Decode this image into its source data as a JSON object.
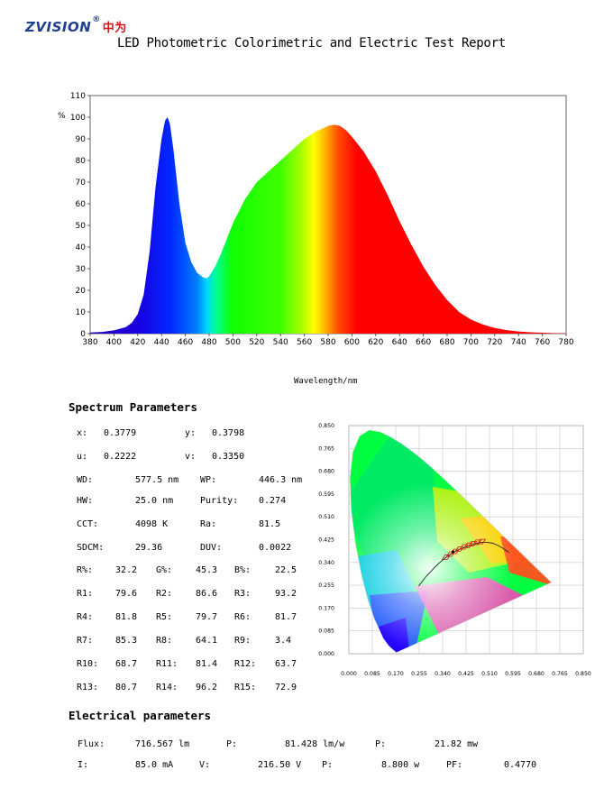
{
  "header": {
    "logo_text": "ZVISION",
    "logo_reg": "®",
    "logo_cn": "中为",
    "title": "LED Photometric Colorimetric and Electric Test Report"
  },
  "chart_data": [
    {
      "type": "area",
      "title": "",
      "xlabel": "Wavelength/nm",
      "ylabel": "%",
      "xlim": [
        380,
        780
      ],
      "ylim": [
        0,
        110
      ],
      "xticks": [
        "380",
        "400",
        "420",
        "440",
        "460",
        "480",
        "500",
        "520",
        "540",
        "560",
        "580",
        "600",
        "620",
        "640",
        "660",
        "680",
        "700",
        "720",
        "740",
        "760",
        "780"
      ],
      "yticks": [
        "0",
        "10",
        "20",
        "30",
        "40",
        "50",
        "60",
        "70",
        "80",
        "90",
        "100",
        "110"
      ],
      "grid": false,
      "fill": "spectral-colors",
      "x": [
        380,
        390,
        400,
        410,
        415,
        420,
        425,
        430,
        435,
        440,
        443,
        445,
        447,
        450,
        455,
        460,
        465,
        470,
        475,
        478,
        480,
        485,
        490,
        495,
        500,
        510,
        520,
        530,
        540,
        550,
        560,
        570,
        580,
        585,
        590,
        595,
        600,
        610,
        620,
        630,
        640,
        650,
        660,
        670,
        680,
        690,
        700,
        710,
        720,
        730,
        740,
        750,
        760,
        770,
        780
      ],
      "y": [
        0.5,
        0.8,
        1.5,
        3.0,
        5.0,
        9.0,
        18.0,
        38.0,
        68.0,
        90.0,
        98.5,
        100.0,
        97.0,
        85.0,
        60.0,
        42.0,
        33.0,
        28.0,
        26.0,
        25.5,
        26.5,
        31.0,
        37.0,
        44.0,
        51.0,
        62.0,
        70.0,
        75.0,
        80.0,
        85.0,
        90.0,
        93.5,
        96.0,
        96.5,
        96.0,
        94.0,
        91.0,
        84.0,
        75.0,
        64.0,
        52.0,
        41.0,
        31.0,
        22.5,
        15.5,
        10.0,
        6.5,
        4.2,
        2.6,
        1.6,
        1.0,
        0.6,
        0.4,
        0.2,
        0.1
      ]
    },
    {
      "type": "scatter",
      "title": "",
      "xlim": [
        0.0,
        0.85
      ],
      "ylim": [
        0.0,
        0.85
      ],
      "xticks": [
        "0.000",
        "0.085",
        "0.170",
        "0.255",
        "0.340",
        "0.425",
        "0.510",
        "0.595",
        "0.680",
        "0.765",
        "0.850"
      ],
      "yticks": [
        "0.000",
        "0.085",
        "0.170",
        "0.255",
        "0.340",
        "0.425",
        "0.510",
        "0.595",
        "0.680",
        "0.765",
        "0.850"
      ],
      "grid": true,
      "x": [
        0.3779
      ],
      "y": [
        0.3798
      ]
    }
  ],
  "spectrum": {
    "heading": "Spectrum Parameters",
    "rows": [
      [
        "x:",
        "0.3779",
        "y:",
        "0.3798"
      ],
      [
        "u:",
        "0.2222",
        "v:",
        "0.3350"
      ],
      [
        "WD:",
        "577.5 nm",
        "WP:",
        "446.3 nm"
      ],
      [
        "HW:",
        "25.0 nm",
        "Purity:",
        "0.274"
      ],
      [
        "CCT:",
        "4098 K",
        "Ra:",
        "81.5"
      ],
      [
        "SDCM:",
        "29.36",
        "DUV:",
        "0.0022"
      ],
      [
        "R%:",
        "32.2",
        "G%:",
        "45.3",
        "B%:",
        "22.5"
      ],
      [
        "R1:",
        "79.6",
        "R2:",
        "86.6",
        "R3:",
        "93.2"
      ],
      [
        "R4:",
        "81.8",
        "R5:",
        "79.7",
        "R6:",
        "81.7"
      ],
      [
        "R7:",
        "85.3",
        "R8:",
        "64.1",
        "R9:",
        "3.4"
      ],
      [
        "R10:",
        "68.7",
        "R11:",
        "81.4",
        "R12:",
        "63.7"
      ],
      [
        "R13:",
        "80.7",
        "R14:",
        "96.2",
        "R15:",
        "72.9"
      ]
    ]
  },
  "electrical": {
    "heading": "Electrical parameters",
    "row1": [
      "Flux:",
      "716.567 lm",
      "P:",
      "81.428 lm/w",
      "P:",
      "21.82 mw"
    ],
    "row2": [
      "I:",
      "85.0 mA",
      "V:",
      "216.50 V",
      "P:",
      "8.800 w",
      "PF:",
      "0.4770"
    ]
  },
  "colors": {
    "logo_blue": "#1f3f8f",
    "logo_red": "#d01818",
    "locus": "#222222",
    "ellipse": "#d01818"
  }
}
